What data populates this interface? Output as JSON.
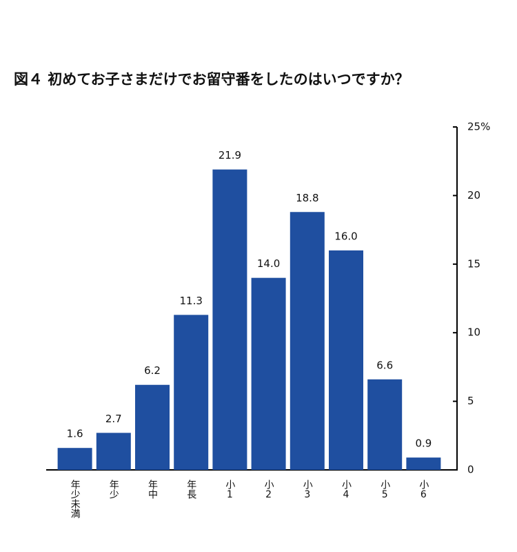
{
  "chart_data": {
    "type": "bar",
    "title": "図４ 初めてお子さまだけでお留守番をしたのはいつですか？",
    "categories": [
      "年少未満",
      "年少",
      "年中",
      "年長",
      "小1",
      "小2",
      "小3",
      "小4",
      "小5",
      "小6"
    ],
    "values": [
      1.6,
      2.7,
      6.2,
      11.3,
      21.9,
      14.0,
      18.8,
      16.0,
      6.6,
      0.9
    ],
    "value_labels": [
      "1.6",
      "2.7",
      "6.2",
      "11.3",
      "21.9",
      "14.0",
      "18.8",
      "16.0",
      "6.6",
      "0.9"
    ],
    "color": "#1f4fa0",
    "ylim": [
      0,
      25
    ],
    "yticks": [
      0,
      5,
      10,
      15,
      20,
      {
        "value": 25,
        "label": "25%"
      }
    ],
    "grid": false
  }
}
